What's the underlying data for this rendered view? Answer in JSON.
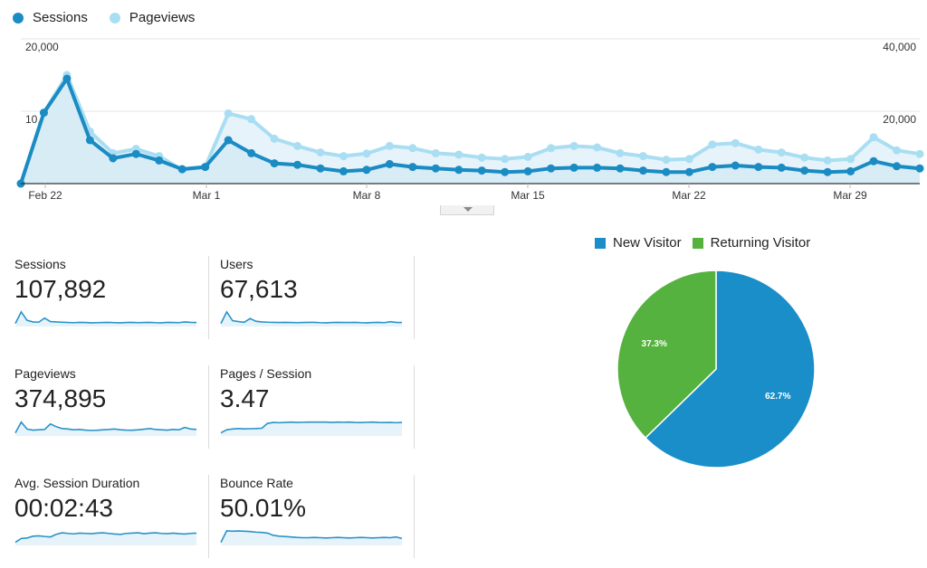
{
  "colors": {
    "sessions": "#1a8bc3",
    "pageviews": "#a9def2",
    "area_fill": "#e6f3fa",
    "grid": "#e6e6e6",
    "axis": "#333333",
    "new_visitor": "#1a8ec8",
    "returning_visitor": "#55b23f"
  },
  "legend": {
    "sessions_label": "Sessions",
    "pageviews_label": "Pageviews"
  },
  "chart_data": [
    {
      "type": "line",
      "title": "",
      "x_tick_labels": [
        "Feb 22",
        "Mar 1",
        "Mar 8",
        "Mar 15",
        "Mar 22",
        "Mar 29"
      ],
      "left_axis_ticks": [
        "20,000",
        "10,000"
      ],
      "right_axis_ticks": [
        "40,000",
        "20,000"
      ],
      "left_ylim": [
        0,
        20000
      ],
      "right_ylim": [
        0,
        40000
      ],
      "grid": true,
      "legend_position": "top-left",
      "series": [
        {
          "name": "Sessions",
          "axis": "left",
          "values": [
            0,
            9800,
            14500,
            6000,
            3500,
            4100,
            3200,
            2000,
            2300,
            6000,
            4200,
            2800,
            2600,
            2100,
            1700,
            1900,
            2700,
            2300,
            2100,
            1900,
            1800,
            1600,
            1700,
            2100,
            2200,
            2200,
            2100,
            1800,
            1600,
            1600,
            2300,
            2500,
            2300,
            2200,
            1800,
            1600,
            1700,
            3100,
            2400,
            2100
          ]
        },
        {
          "name": "Pageviews",
          "axis": "right",
          "values": [
            0,
            19600,
            30000,
            14400,
            8400,
            9600,
            7600,
            3800,
            4600,
            19400,
            17800,
            12400,
            10400,
            8600,
            7600,
            8300,
            10400,
            9800,
            8400,
            8000,
            7200,
            6800,
            7400,
            9800,
            10400,
            10000,
            8400,
            7600,
            6600,
            6800,
            10800,
            11200,
            9400,
            8600,
            7200,
            6400,
            6800,
            12800,
            9200,
            8200
          ]
        }
      ]
    },
    {
      "type": "pie",
      "legend_position": "top",
      "slices": [
        {
          "label": "New Visitor",
          "value": 62.7,
          "display": "62.7%"
        },
        {
          "label": "Returning Visitor",
          "value": 37.3,
          "display": "37.3%"
        }
      ]
    }
  ],
  "metrics": [
    {
      "label": "Sessions",
      "value": "107,892",
      "spark": [
        20,
        95,
        40,
        30,
        28,
        55,
        32,
        30,
        28,
        26,
        25,
        27,
        26,
        24,
        25,
        26,
        27,
        25,
        24,
        26,
        27,
        25,
        26,
        27,
        25,
        24,
        27,
        26,
        25,
        30,
        27,
        26
      ]
    },
    {
      "label": "Users",
      "value": "67,613",
      "spark": [
        20,
        95,
        38,
        32,
        28,
        52,
        34,
        30,
        28,
        27,
        26,
        27,
        26,
        25,
        26,
        27,
        27,
        25,
        24,
        26,
        27,
        26,
        26,
        27,
        25,
        24,
        26,
        27,
        25,
        31,
        27,
        26
      ]
    },
    {
      "label": "Pageviews",
      "value": "374,895",
      "spark": [
        20,
        90,
        45,
        38,
        40,
        42,
        78,
        60,
        48,
        45,
        40,
        42,
        38,
        36,
        37,
        40,
        42,
        45,
        40,
        38,
        37,
        40,
        44,
        48,
        42,
        40,
        38,
        42,
        40,
        55,
        45,
        42
      ]
    },
    {
      "label": "Pages / Session",
      "value": "3.47",
      "spark": [
        20,
        40,
        45,
        48,
        46,
        47,
        48,
        50,
        82,
        88,
        86,
        88,
        90,
        88,
        89,
        90,
        90,
        90,
        90,
        88,
        90,
        89,
        90,
        88,
        87,
        89,
        90,
        88,
        87,
        88,
        86,
        88
      ]
    },
    {
      "label": "Avg. Session Duration",
      "value": "00:02:43",
      "spark": [
        20,
        45,
        48,
        60,
        62,
        58,
        55,
        72,
        82,
        78,
        75,
        80,
        78,
        76,
        80,
        82,
        78,
        74,
        72,
        78,
        80,
        82,
        76,
        80,
        82,
        78,
        76,
        80,
        76,
        74,
        78,
        80
      ]
    },
    {
      "label": "Bounce Rate",
      "value": "50.01%",
      "spark": [
        20,
        95,
        92,
        94,
        92,
        90,
        86,
        84,
        80,
        65,
        60,
        58,
        55,
        52,
        50,
        50,
        52,
        50,
        48,
        50,
        52,
        50,
        48,
        50,
        52,
        50,
        48,
        50,
        52,
        50,
        55,
        45
      ]
    }
  ]
}
